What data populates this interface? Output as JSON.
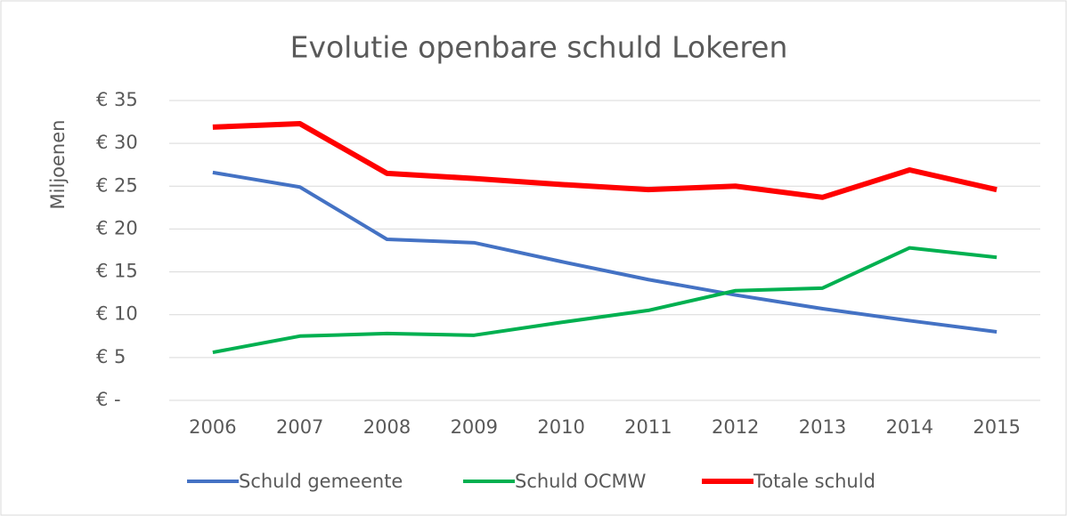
{
  "chart_data": {
    "type": "line",
    "title": "Evolutie openbare schuld Lokeren",
    "y_label": "Miljoenen",
    "categories": [
      "2006",
      "2007",
      "2008",
      "2009",
      "2010",
      "2011",
      "2012",
      "2013",
      "2014",
      "2015"
    ],
    "series": [
      {
        "name": "Schuld gemeente",
        "color": "#4472c4",
        "values": [
          26.6,
          24.9,
          18.8,
          18.4,
          16.2,
          14.1,
          12.3,
          10.7,
          9.3,
          8.0
        ]
      },
      {
        "name": "Schuld OCMW",
        "color": "#00b050",
        "values": [
          5.6,
          7.5,
          7.8,
          7.6,
          9.1,
          10.5,
          12.8,
          13.1,
          17.8,
          16.7
        ]
      },
      {
        "name": "Totale schuld",
        "color": "#ff0000",
        "values": [
          31.9,
          32.3,
          26.5,
          25.9,
          25.2,
          24.6,
          25.0,
          23.7,
          26.9,
          24.6
        ]
      }
    ],
    "ylim": [
      0,
      35
    ],
    "yticks": [
      {
        "value": 0,
        "label": "€ -"
      },
      {
        "value": 5,
        "label": "€ 5"
      },
      {
        "value": 10,
        "label": "€ 10"
      },
      {
        "value": 15,
        "label": "€ 15"
      },
      {
        "value": 20,
        "label": "€ 20"
      },
      {
        "value": 25,
        "label": "€ 25"
      },
      {
        "value": 30,
        "label": "€ 30"
      },
      {
        "value": 35,
        "label": "€ 35"
      }
    ],
    "grid": true,
    "legend": "bottom"
  }
}
